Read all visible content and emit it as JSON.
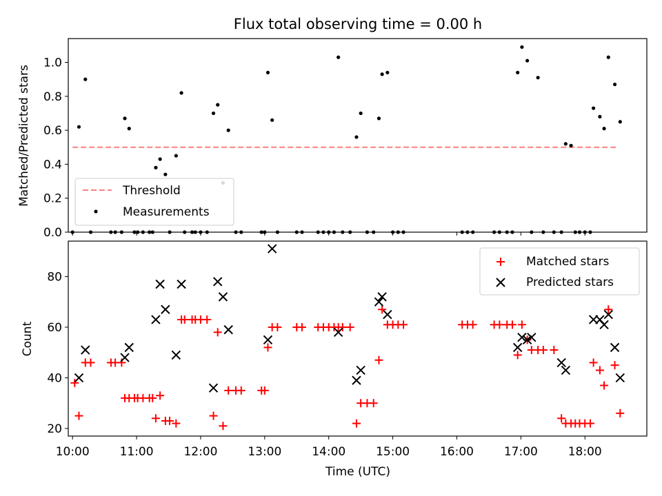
{
  "chart_data": [
    {
      "type": "scatter",
      "title": "Flux total observing time = 0.00 h",
      "xlabel": "",
      "ylabel": "Matched/Predicted stars",
      "xlim": [
        "09:56",
        "18:58"
      ],
      "ylim": [
        0,
        1.14
      ],
      "yticks": [
        "0.0",
        "0.2",
        "0.4",
        "0.6",
        "0.8",
        "1.0"
      ],
      "threshold": {
        "name": "Threshold",
        "value": 0.5,
        "x": [
          "10:00",
          "18:30"
        ],
        "color": "#ff7f7f"
      },
      "legend": {
        "placement": "lower-left",
        "entries": [
          "Threshold",
          "Measurements"
        ]
      },
      "series": [
        {
          "name": "Measurements",
          "color": "#000000",
          "points": [
            [
              "10:00",
              0
            ],
            [
              "10:06",
              0.62
            ],
            [
              "10:12",
              0.9
            ],
            [
              "10:17",
              0
            ],
            [
              "10:36",
              0
            ],
            [
              "10:40",
              0
            ],
            [
              "10:46",
              0
            ],
            [
              "10:49",
              0.67
            ],
            [
              "10:53",
              0.61
            ],
            [
              "10:58",
              0
            ],
            [
              "11:01",
              0
            ],
            [
              "11:06",
              0
            ],
            [
              "11:12",
              0
            ],
            [
              "11:15",
              0
            ],
            [
              "11:18",
              0.38
            ],
            [
              "11:22",
              0.43
            ],
            [
              "11:27",
              0.34
            ],
            [
              "11:31",
              0
            ],
            [
              "11:37",
              0.45
            ],
            [
              "11:42",
              0.82
            ],
            [
              "11:45",
              0
            ],
            [
              "11:52",
              0
            ],
            [
              "11:55",
              0
            ],
            [
              "12:00",
              0
            ],
            [
              "12:06",
              0
            ],
            [
              "12:12",
              0.7
            ],
            [
              "12:16",
              0.75
            ],
            [
              "12:21",
              0.29
            ],
            [
              "12:26",
              0.6
            ],
            [
              "12:33",
              0
            ],
            [
              "12:38",
              0
            ],
            [
              "12:57",
              0
            ],
            [
              "13:00",
              0
            ],
            [
              "13:03",
              0.94
            ],
            [
              "13:07",
              0.66
            ],
            [
              "13:12",
              0
            ],
            [
              "13:30",
              0
            ],
            [
              "13:35",
              0
            ],
            [
              "13:50",
              0
            ],
            [
              "13:55",
              0
            ],
            [
              "14:00",
              0
            ],
            [
              "14:05",
              0
            ],
            [
              "14:09",
              1.03
            ],
            [
              "14:13",
              0
            ],
            [
              "14:20",
              0
            ],
            [
              "14:26",
              0.56
            ],
            [
              "14:30",
              0.7
            ],
            [
              "14:36",
              0
            ],
            [
              "14:42",
              0
            ],
            [
              "14:47",
              0.67
            ],
            [
              "14:50",
              0.93
            ],
            [
              "14:55",
              0.94
            ],
            [
              "15:00",
              0
            ],
            [
              "15:05",
              0
            ],
            [
              "15:10",
              0
            ],
            [
              "16:05",
              0
            ],
            [
              "16:10",
              0
            ],
            [
              "16:15",
              0
            ],
            [
              "16:35",
              0
            ],
            [
              "16:40",
              0
            ],
            [
              "16:47",
              0
            ],
            [
              "16:52",
              0
            ],
            [
              "16:57",
              0.94
            ],
            [
              "17:01",
              1.09
            ],
            [
              "17:06",
              1.01
            ],
            [
              "17:10",
              0
            ],
            [
              "17:16",
              0.91
            ],
            [
              "17:21",
              0
            ],
            [
              "17:31",
              0
            ],
            [
              "17:38",
              0
            ],
            [
              "17:42",
              0.52
            ],
            [
              "17:47",
              0.51
            ],
            [
              "17:51",
              0
            ],
            [
              "17:55",
              0
            ],
            [
              "18:00",
              0
            ],
            [
              "18:05",
              0
            ],
            [
              "18:08",
              0.73
            ],
            [
              "18:14",
              0.68
            ],
            [
              "18:18",
              0.61
            ],
            [
              "18:22",
              1.03
            ],
            [
              "18:28",
              0.87
            ],
            [
              "18:33",
              0.65
            ]
          ]
        }
      ]
    },
    {
      "type": "scatter",
      "title": "",
      "xlabel": "Time (UTC)",
      "ylabel": "Count",
      "xlim": [
        "09:56",
        "18:58"
      ],
      "ylim": [
        17,
        94
      ],
      "xticks": [
        "10:00",
        "11:00",
        "12:00",
        "13:00",
        "14:00",
        "15:00",
        "16:00",
        "17:00",
        "18:00"
      ],
      "yticks": [
        "20",
        "40",
        "60",
        "80"
      ],
      "legend": {
        "placement": "upper-right",
        "entries": [
          "Matched stars",
          "Predicted stars"
        ]
      },
      "series": [
        {
          "name": "Matched stars",
          "marker": "plus",
          "color": "#ff0000",
          "points": [
            [
              "10:02",
              38
            ],
            [
              "10:06",
              25
            ],
            [
              "10:12",
              46
            ],
            [
              "10:17",
              46
            ],
            [
              "10:36",
              46
            ],
            [
              "10:40",
              46
            ],
            [
              "10:46",
              46
            ],
            [
              "10:49",
              32
            ],
            [
              "10:53",
              32
            ],
            [
              "10:58",
              32
            ],
            [
              "11:01",
              32
            ],
            [
              "11:06",
              32
            ],
            [
              "11:12",
              32
            ],
            [
              "11:15",
              32
            ],
            [
              "11:18",
              24
            ],
            [
              "11:22",
              33
            ],
            [
              "11:27",
              23
            ],
            [
              "11:31",
              23
            ],
            [
              "11:37",
              22
            ],
            [
              "11:42",
              63
            ],
            [
              "11:45",
              63
            ],
            [
              "11:52",
              63
            ],
            [
              "11:55",
              63
            ],
            [
              "12:00",
              63
            ],
            [
              "12:06",
              63
            ],
            [
              "12:12",
              25
            ],
            [
              "12:16",
              58
            ],
            [
              "12:21",
              21
            ],
            [
              "12:26",
              35
            ],
            [
              "12:33",
              35
            ],
            [
              "12:38",
              35
            ],
            [
              "12:57",
              35
            ],
            [
              "13:00",
              35
            ],
            [
              "13:03",
              52
            ],
            [
              "13:07",
              60
            ],
            [
              "13:12",
              60
            ],
            [
              "13:30",
              60
            ],
            [
              "13:35",
              60
            ],
            [
              "13:50",
              60
            ],
            [
              "13:55",
              60
            ],
            [
              "14:00",
              60
            ],
            [
              "14:05",
              60
            ],
            [
              "14:09",
              60
            ],
            [
              "14:13",
              60
            ],
            [
              "14:20",
              60
            ],
            [
              "14:26",
              22
            ],
            [
              "14:30",
              30
            ],
            [
              "14:36",
              30
            ],
            [
              "14:42",
              30
            ],
            [
              "14:47",
              47
            ],
            [
              "14:50",
              67
            ],
            [
              "14:55",
              61
            ],
            [
              "15:00",
              61
            ],
            [
              "15:05",
              61
            ],
            [
              "15:10",
              61
            ],
            [
              "16:05",
              61
            ],
            [
              "16:10",
              61
            ],
            [
              "16:15",
              61
            ],
            [
              "16:35",
              61
            ],
            [
              "16:40",
              61
            ],
            [
              "16:47",
              61
            ],
            [
              "16:52",
              61
            ],
            [
              "16:57",
              49
            ],
            [
              "17:01",
              61
            ],
            [
              "17:06",
              55
            ],
            [
              "17:10",
              51
            ],
            [
              "17:16",
              51
            ],
            [
              "17:21",
              51
            ],
            [
              "17:31",
              51
            ],
            [
              "17:38",
              24
            ],
            [
              "17:42",
              22
            ],
            [
              "17:47",
              22
            ],
            [
              "17:51",
              22
            ],
            [
              "17:55",
              22
            ],
            [
              "18:00",
              22
            ],
            [
              "18:05",
              22
            ],
            [
              "18:08",
              46
            ],
            [
              "18:14",
              43
            ],
            [
              "18:18",
              37
            ],
            [
              "18:22",
              67
            ],
            [
              "18:28",
              45
            ],
            [
              "18:33",
              26
            ]
          ]
        },
        {
          "name": "Predicted stars",
          "marker": "x",
          "color": "#000000",
          "points": [
            [
              "10:06",
              40
            ],
            [
              "10:12",
              51
            ],
            [
              "10:49",
              48
            ],
            [
              "10:53",
              52
            ],
            [
              "11:18",
              63
            ],
            [
              "11:22",
              77
            ],
            [
              "11:27",
              67
            ],
            [
              "11:37",
              49
            ],
            [
              "11:42",
              77
            ],
            [
              "12:12",
              36
            ],
            [
              "12:16",
              78
            ],
            [
              "12:21",
              72
            ],
            [
              "12:26",
              59
            ],
            [
              "13:03",
              55
            ],
            [
              "13:07",
              91
            ],
            [
              "14:09",
              58
            ],
            [
              "14:26",
              39
            ],
            [
              "14:30",
              43
            ],
            [
              "14:47",
              70
            ],
            [
              "14:50",
              72
            ],
            [
              "14:55",
              65
            ],
            [
              "16:57",
              52
            ],
            [
              "17:01",
              56
            ],
            [
              "17:06",
              55
            ],
            [
              "17:10",
              56
            ],
            [
              "17:38",
              46
            ],
            [
              "17:42",
              43
            ],
            [
              "18:08",
              63
            ],
            [
              "18:14",
              63
            ],
            [
              "18:18",
              61
            ],
            [
              "18:22",
              65
            ],
            [
              "18:28",
              52
            ],
            [
              "18:33",
              40
            ]
          ]
        }
      ]
    }
  ]
}
